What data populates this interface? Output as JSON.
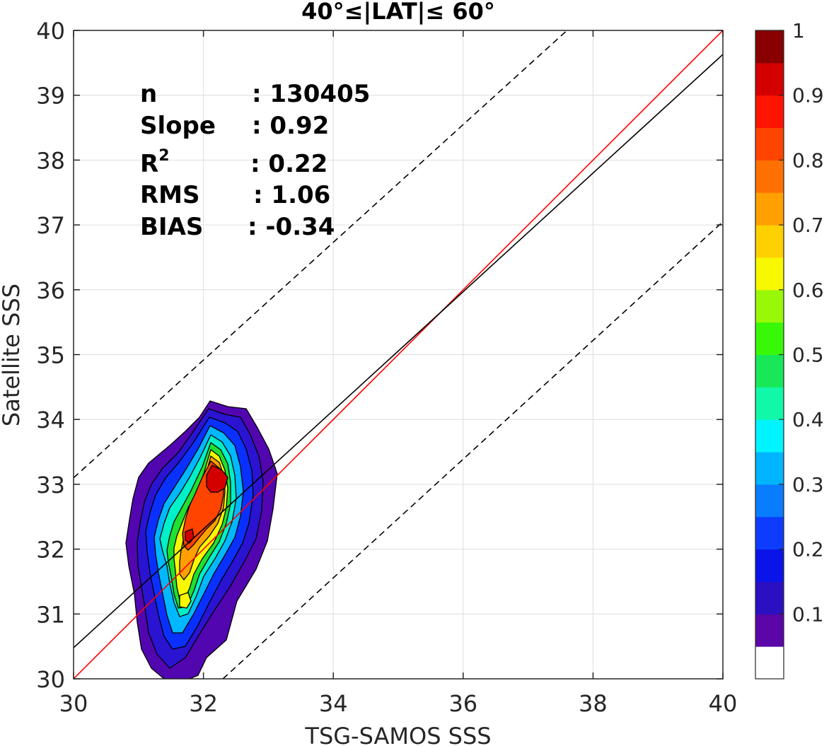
{
  "chart_data": {
    "type": "heatmap",
    "title": "40°≤|LAT|≤ 60°",
    "xlabel": "TSG-SAMOS SSS",
    "ylabel": "Satellite SSS",
    "xlim": [
      30,
      40
    ],
    "ylim": [
      30,
      40
    ],
    "xticks": [
      "30",
      "32",
      "34",
      "36",
      "38",
      "40"
    ],
    "yticks": [
      "30",
      "31",
      "32",
      "33",
      "34",
      "35",
      "36",
      "37",
      "38",
      "39",
      "40"
    ],
    "grid": true,
    "stats": {
      "n_label": "n",
      "n_value": ": 130405",
      "slope_label": "Slope",
      "slope_value": ": 0.92",
      "r2_label": "R",
      "r2_sup": "2",
      "r2_value": ": 0.22",
      "rms_label": "RMS",
      "rms_value": ": 1.06",
      "bias_label": "BIAS",
      "bias_value": ": -0.34"
    },
    "lines": [
      {
        "name": "one-to-one",
        "color": "#ff0000",
        "style": "solid",
        "x": [
          30,
          40
        ],
        "y": [
          30,
          40
        ]
      },
      {
        "name": "regression",
        "color": "#000000",
        "style": "solid",
        "x": [
          30,
          40
        ],
        "y": [
          30.48,
          39.63
        ]
      },
      {
        "name": "upper-bound",
        "color": "#000000",
        "style": "dashed",
        "x": [
          30,
          37.6
        ],
        "y": [
          33.1,
          40
        ]
      },
      {
        "name": "lower-bound",
        "color": "#000000",
        "style": "dashed",
        "x": [
          32.3,
          40
        ],
        "y": [
          30,
          37.05
        ]
      }
    ],
    "density_peak": {
      "x": 32.05,
      "y": 32.3
    },
    "colorbar": {
      "ticks": [
        "0.1",
        "0.2",
        "0.3",
        "0.4",
        "0.5",
        "0.6",
        "0.7",
        "0.8",
        "0.9",
        "1"
      ],
      "range": [
        0,
        1
      ],
      "colors": [
        "#ffffff",
        "#5a06a8",
        "#2a10c0",
        "#0a14e8",
        "#0e3cff",
        "#0a7cff",
        "#00b4ff",
        "#00f4ff",
        "#10f8a8",
        "#18e858",
        "#38f808",
        "#98f808",
        "#f8f800",
        "#ffd000",
        "#ffa000",
        "#ff7000",
        "#ff4400",
        "#ff1400",
        "#d40000",
        "#880000"
      ]
    }
  }
}
